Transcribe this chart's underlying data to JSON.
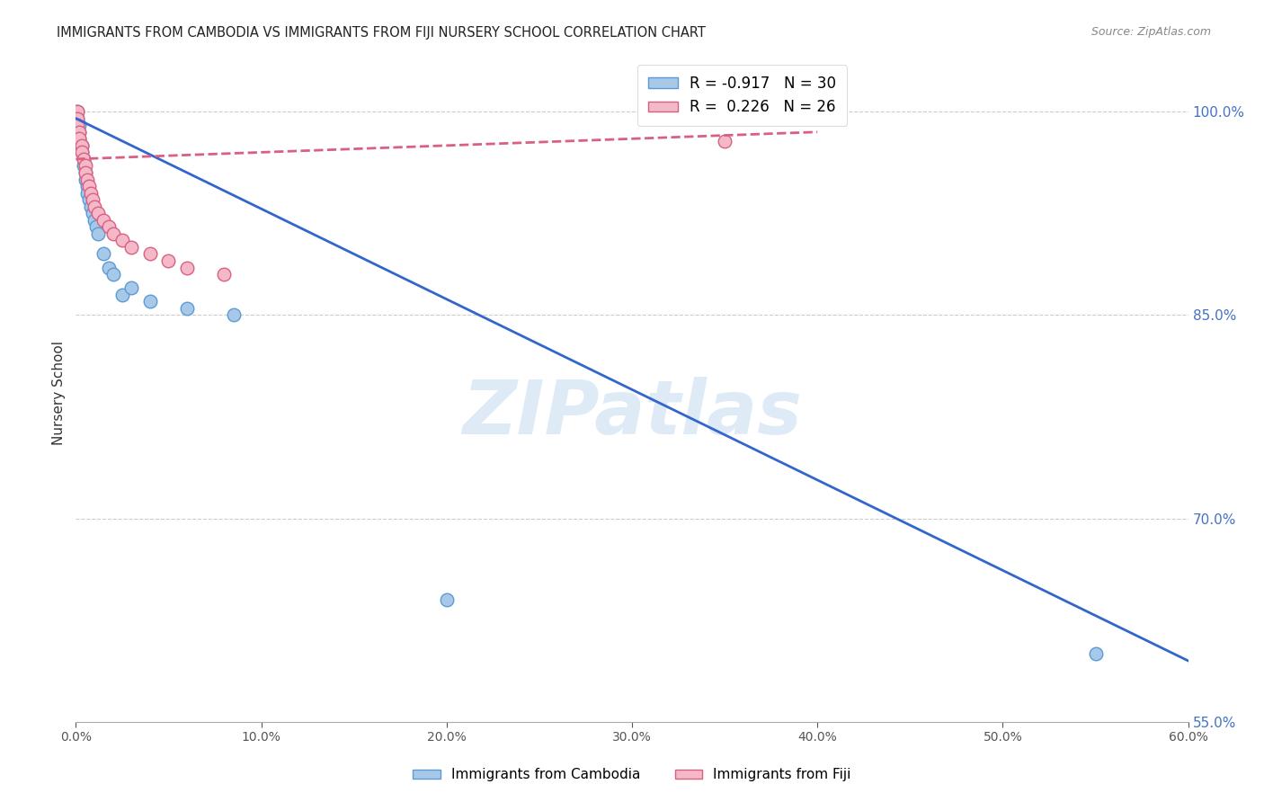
{
  "title": "IMMIGRANTS FROM CAMBODIA VS IMMIGRANTS FROM FIJI NURSERY SCHOOL CORRELATION CHART",
  "source": "Source: ZipAtlas.com",
  "ylabel": "Nursery School",
  "watermark": "ZIPatlas",
  "cambodia_R": -0.917,
  "cambodia_N": 30,
  "fiji_R": 0.226,
  "fiji_N": 26,
  "cambodia_scatter_color": "#a8c8e8",
  "cambodia_scatter_edge": "#5b9bd5",
  "cambodia_line_color": "#3366cc",
  "fiji_scatter_color": "#f4b8c8",
  "fiji_scatter_edge": "#d96080",
  "fiji_line_color": "#d96080",
  "background_color": "#ffffff",
  "grid_color": "#cccccc",
  "right_axis_color": "#4472c4",
  "cambodia_x": [
    0.001,
    0.001,
    0.001,
    0.002,
    0.002,
    0.002,
    0.003,
    0.003,
    0.004,
    0.004,
    0.005,
    0.005,
    0.006,
    0.006,
    0.007,
    0.008,
    0.009,
    0.01,
    0.011,
    0.012,
    0.015,
    0.018,
    0.02,
    0.025,
    0.03,
    0.04,
    0.06,
    0.085,
    0.2,
    0.55
  ],
  "cambodia_y": [
    1.0,
    0.995,
    0.99,
    0.99,
    0.985,
    0.98,
    0.975,
    0.97,
    0.965,
    0.96,
    0.955,
    0.95,
    0.945,
    0.94,
    0.935,
    0.93,
    0.925,
    0.92,
    0.915,
    0.91,
    0.895,
    0.885,
    0.88,
    0.865,
    0.87,
    0.86,
    0.855,
    0.85,
    0.64,
    0.6
  ],
  "fiji_x": [
    0.001,
    0.001,
    0.001,
    0.002,
    0.002,
    0.003,
    0.003,
    0.004,
    0.005,
    0.005,
    0.006,
    0.007,
    0.008,
    0.009,
    0.01,
    0.012,
    0.015,
    0.018,
    0.02,
    0.025,
    0.03,
    0.04,
    0.05,
    0.06,
    0.08,
    0.35
  ],
  "fiji_y": [
    1.0,
    0.995,
    0.99,
    0.985,
    0.98,
    0.975,
    0.97,
    0.965,
    0.96,
    0.955,
    0.95,
    0.945,
    0.94,
    0.935,
    0.93,
    0.925,
    0.92,
    0.915,
    0.91,
    0.905,
    0.9,
    0.895,
    0.89,
    0.885,
    0.88,
    0.978
  ],
  "xlim": [
    0.0,
    0.6
  ],
  "ylim": [
    0.565,
    1.035
  ],
  "yticks": [
    1.0,
    0.85,
    0.7,
    0.55
  ],
  "xticks": [
    0.0,
    0.1,
    0.2,
    0.3,
    0.4,
    0.5,
    0.6
  ],
  "cambodia_line_x0": 0.0,
  "cambodia_line_y0": 0.995,
  "cambodia_line_x1": 0.6,
  "cambodia_line_y1": 0.595,
  "fiji_line_x0": 0.0,
  "fiji_line_y0": 0.965,
  "fiji_line_x1": 0.4,
  "fiji_line_y1": 0.985
}
